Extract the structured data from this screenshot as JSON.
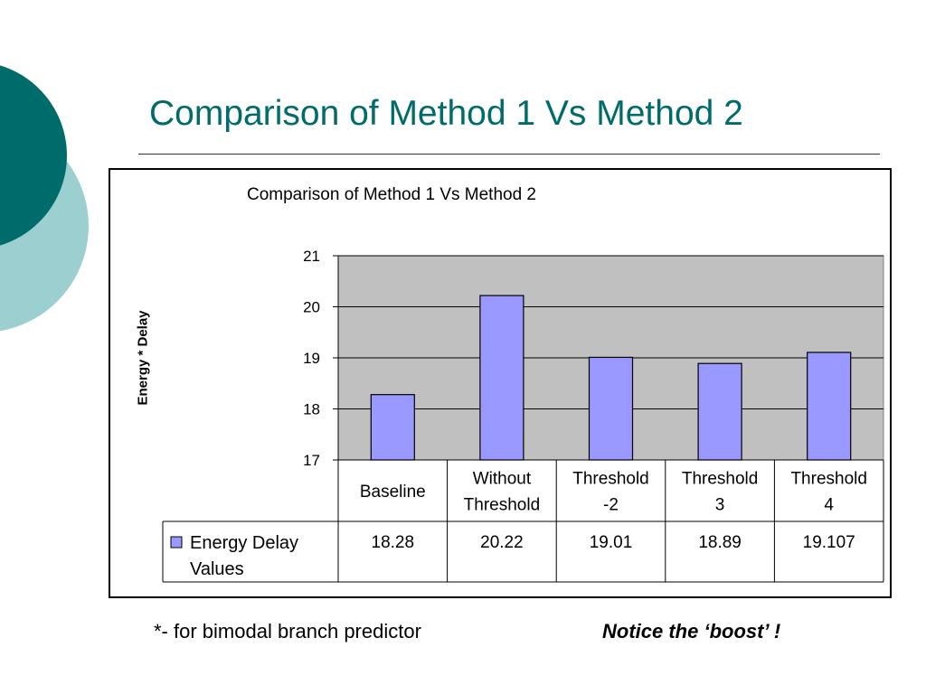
{
  "slide": {
    "title": "Comparison of Method 1 Vs Method 2",
    "footnote": "*- for bimodal branch predictor",
    "notice": "Notice the ‘boost’ !",
    "accent_color": "#006b6b",
    "accent_light": "#9ccfcf"
  },
  "chart_data": {
    "type": "bar",
    "title": "Comparison of Method 1 Vs Method 2",
    "ylabel": "Energy * Delay",
    "xlabel": "",
    "ylim": [
      17,
      21
    ],
    "yticks": [
      17,
      18,
      19,
      20,
      21
    ],
    "grid": true,
    "categories": [
      [
        "Baseline"
      ],
      [
        "Without",
        "Threshold"
      ],
      [
        "Threshold",
        "-2"
      ],
      [
        "Threshold",
        "3"
      ],
      [
        "Threshold",
        "4"
      ]
    ],
    "series": [
      {
        "name": [
          "Energy Delay",
          "Values"
        ],
        "values": [
          18.28,
          20.22,
          19.01,
          18.89,
          19.107
        ],
        "value_labels": [
          "18.28",
          "20.22",
          "19.01",
          "18.89",
          "19.107"
        ],
        "color": "#9999ff"
      }
    ],
    "plot_background": "#c0c0c0",
    "data_table": true
  }
}
